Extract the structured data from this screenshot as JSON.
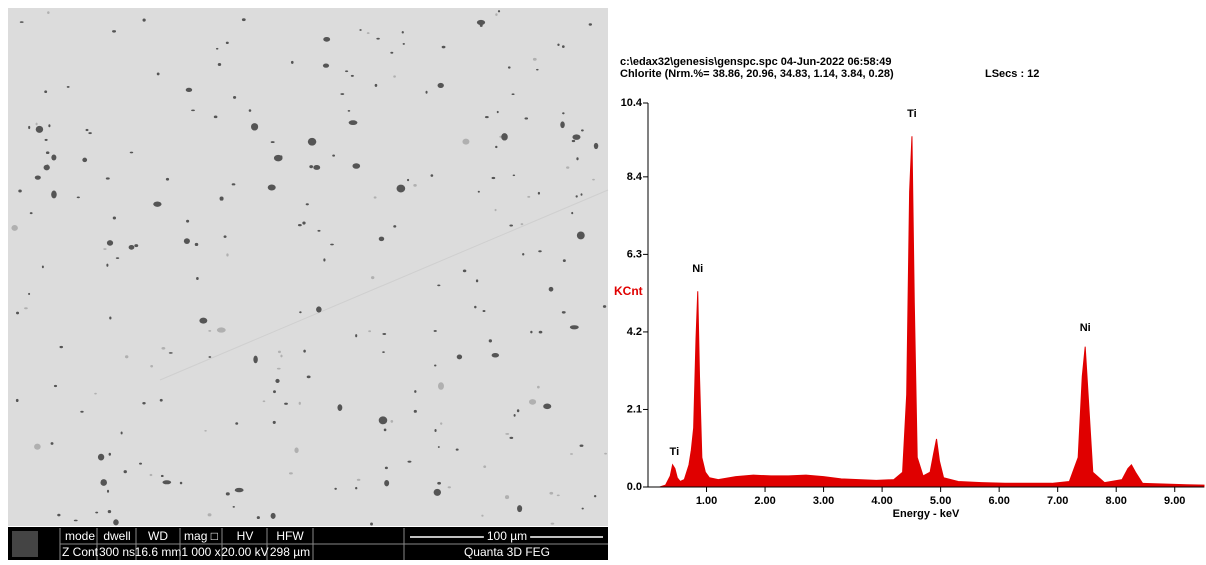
{
  "sem_info": {
    "headers": [
      "mode",
      "dwell",
      "WD",
      "mag □",
      "HV",
      "HFW"
    ],
    "values": [
      "Z Cont",
      "300 ns",
      "16.6 mm",
      "1 000 x",
      "20.00 kV",
      "298 µm"
    ],
    "scale_bar": "100 µm",
    "instrument": "Quanta 3D FEG"
  },
  "chart_data": {
    "type": "area",
    "title": "c:\\edax32\\genesis\\genspc.spc  04-Jun-2022 06:58:49",
    "subtitle": "Chlorite (Nrm.%= 38.86, 20.96, 34.83, 1.14, 3.84, 0.28)",
    "live_time": "LSecs : 12",
    "y_label": "KCnt",
    "x_label": "Energy - keV",
    "color": "#e00000",
    "x": [
      0.2,
      0.3,
      0.38,
      0.42,
      0.46,
      0.5,
      0.55,
      0.62,
      0.7,
      0.74,
      0.78,
      0.82,
      0.85,
      0.88,
      0.92,
      0.98,
      1.05,
      1.2,
      1.5,
      1.8,
      2.1,
      2.4,
      2.7,
      3.0,
      3.3,
      3.6,
      3.9,
      4.2,
      4.35,
      4.42,
      4.47,
      4.51,
      4.55,
      4.6,
      4.7,
      4.82,
      4.88,
      4.93,
      4.98,
      5.05,
      5.3,
      5.7,
      6.1,
      6.5,
      6.9,
      7.2,
      7.35,
      7.42,
      7.47,
      7.52,
      7.6,
      7.8,
      8.1,
      8.2,
      8.26,
      8.33,
      8.45,
      8.8,
      9.2,
      9.5
    ],
    "values": [
      0.0,
      0.05,
      0.3,
      0.6,
      0.5,
      0.25,
      0.15,
      0.2,
      0.6,
      1.0,
      1.6,
      4.0,
      5.3,
      3.0,
      0.8,
      0.4,
      0.25,
      0.2,
      0.28,
      0.32,
      0.3,
      0.3,
      0.32,
      0.28,
      0.22,
      0.2,
      0.18,
      0.2,
      0.4,
      2.5,
      8.0,
      9.5,
      5.0,
      0.8,
      0.3,
      0.4,
      0.9,
      1.3,
      0.7,
      0.25,
      0.15,
      0.12,
      0.1,
      0.1,
      0.1,
      0.15,
      0.8,
      3.0,
      3.8,
      2.5,
      0.4,
      0.12,
      0.2,
      0.5,
      0.6,
      0.4,
      0.1,
      0.08,
      0.06,
      0.05
    ],
    "annotations": [
      {
        "text": "Ti",
        "x": 0.45,
        "y": 0.95
      },
      {
        "text": "Ni",
        "x": 0.85,
        "y": 5.9
      },
      {
        "text": "Ti",
        "x": 4.51,
        "y": 10.1
      },
      {
        "text": "Ni",
        "x": 7.47,
        "y": 4.3
      }
    ],
    "xlim": [
      0,
      9.5
    ],
    "xticks": [
      {
        "value": 1,
        "label": "1.00"
      },
      {
        "value": 2,
        "label": "2.00"
      },
      {
        "value": 3,
        "label": "3.00"
      },
      {
        "value": 4,
        "label": "4.00"
      },
      {
        "value": 5,
        "label": "5.00"
      },
      {
        "value": 6,
        "label": "6.00"
      },
      {
        "value": 7,
        "label": "7.00"
      },
      {
        "value": 8,
        "label": "8.00"
      },
      {
        "value": 9,
        "label": "9.00"
      }
    ],
    "ylim": [
      0,
      10.4
    ],
    "yticks": [
      {
        "value": 0,
        "label": "0.0"
      },
      2.1,
      4.2,
      6.3,
      8.4,
      10.4
    ]
  }
}
